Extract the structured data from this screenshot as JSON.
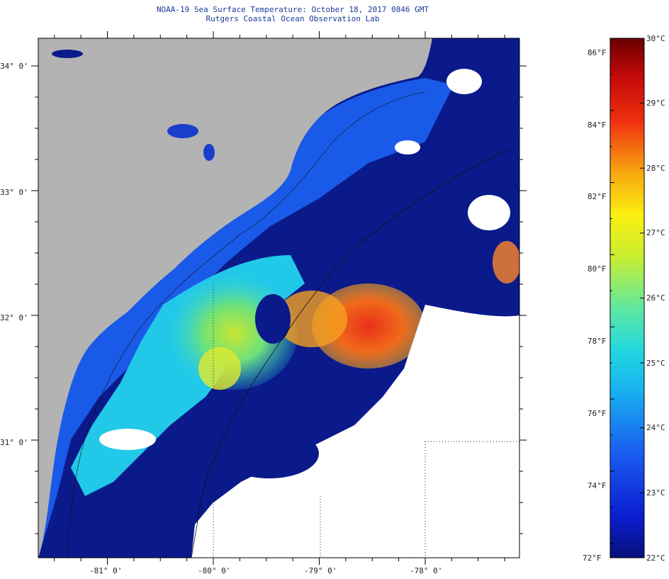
{
  "map": {
    "title": "NOAA-19 Sea Surface Temperature:  October 18, 2017 0846 GMT",
    "subtitle": "Rutgers Coastal Ocean Observation Lab",
    "lat_labels": [
      "34° 0'",
      "33° 0'",
      "32° 0'",
      "31° 0'"
    ],
    "lon_labels": [
      "-81° 0'",
      "-80° 0'",
      "-79° 0'",
      "-78° 0'"
    ],
    "lat_range": [
      30.0,
      34.25
    ],
    "lon_range": [
      -81.5,
      -77.2
    ],
    "colors": {
      "land": "#b3b3b3",
      "cloud": "#ffffff",
      "coastal_cold": "#1a3ecc",
      "offshore_cold": "#0a1a8a"
    }
  },
  "colorbar": {
    "fahrenheit_labels": [
      "86°F",
      "84°F",
      "82°F",
      "80°F",
      "78°F",
      "76°F",
      "74°F",
      "72°F"
    ],
    "celsius_labels": [
      "30°C",
      "29°C",
      "28°C",
      "27°C",
      "26°C",
      "25°C",
      "24°C",
      "23°C",
      "22°C"
    ],
    "range_c": [
      22,
      30
    ]
  }
}
